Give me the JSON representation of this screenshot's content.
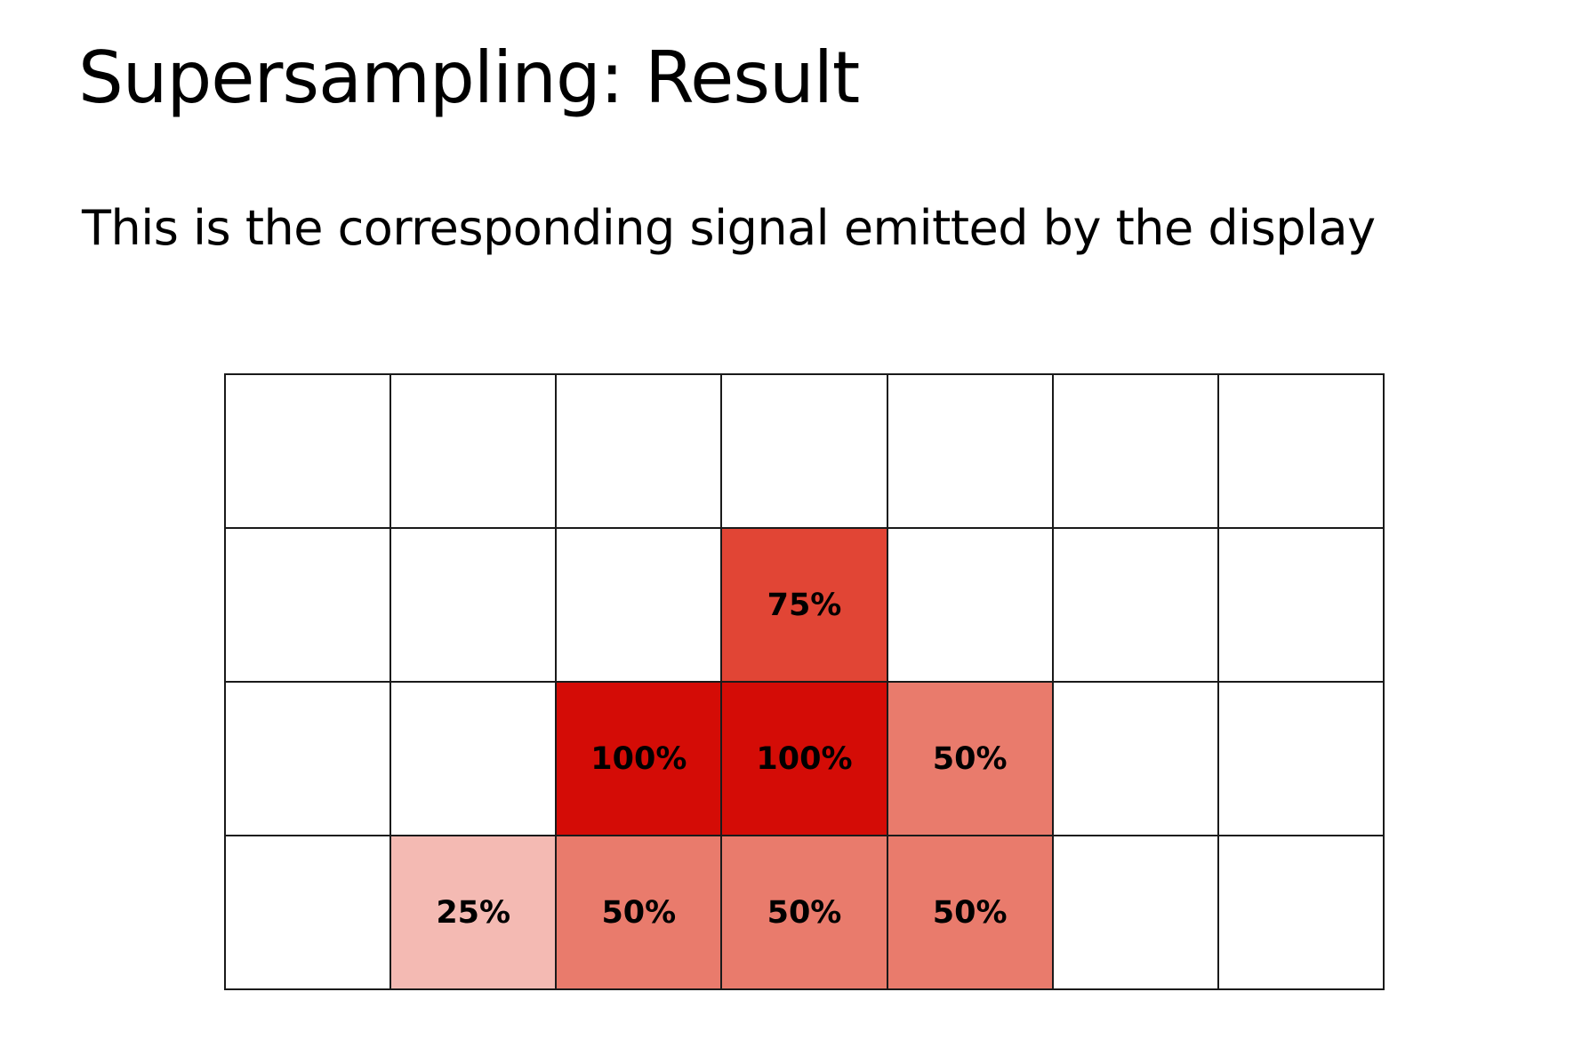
{
  "slide": {
    "title": "Supersampling: Result",
    "subtitle": "This is the corresponding signal emitted by the display"
  },
  "colors": {
    "grid_line": "#1a1a1a",
    "empty": "#ffffff",
    "coverage_25": "#f4bab3",
    "coverage_50": "#e97b6c",
    "coverage_75": "#e14535",
    "coverage_100": "#d40c06"
  },
  "grid": {
    "columns": 7,
    "rows": [
      [
        null,
        null,
        null,
        null,
        null,
        null,
        null
      ],
      [
        null,
        null,
        null,
        "75%",
        null,
        null,
        null
      ],
      [
        null,
        null,
        "100%",
        "100%",
        "50%",
        null,
        null
      ],
      [
        null,
        "25%",
        "50%",
        "50%",
        "50%",
        null,
        null
      ]
    ]
  }
}
